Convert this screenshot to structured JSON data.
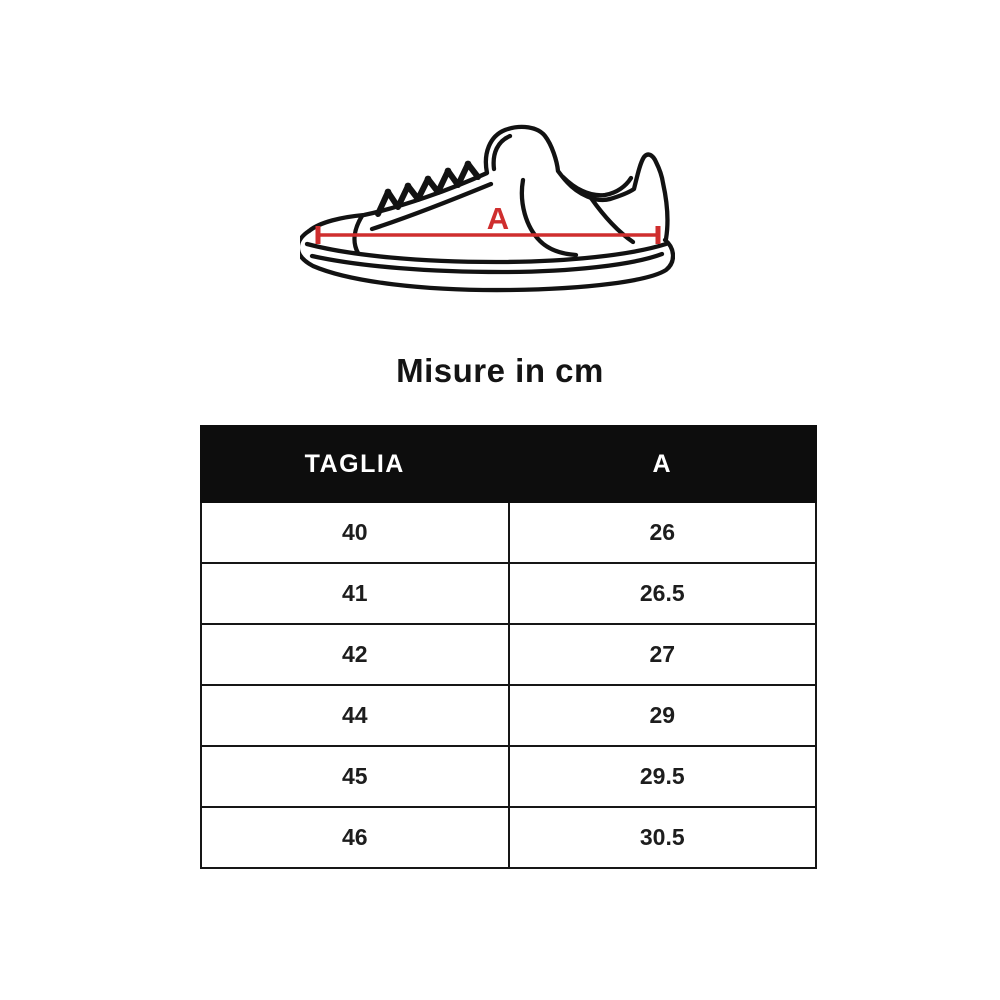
{
  "title": "Misure in cm",
  "diagram": {
    "measure_label": "A",
    "line_color": "#cf2e2e",
    "outline_color": "#121212"
  },
  "table": {
    "columns": [
      "TAGLIA",
      "A"
    ],
    "rows": [
      [
        "40",
        "26"
      ],
      [
        "41",
        "26.5"
      ],
      [
        "42",
        "27"
      ],
      [
        "44",
        "29"
      ],
      [
        "45",
        "29.5"
      ],
      [
        "46",
        "30.5"
      ]
    ],
    "header_bg": "#0d0d0d",
    "header_text_color": "#ffffff"
  }
}
